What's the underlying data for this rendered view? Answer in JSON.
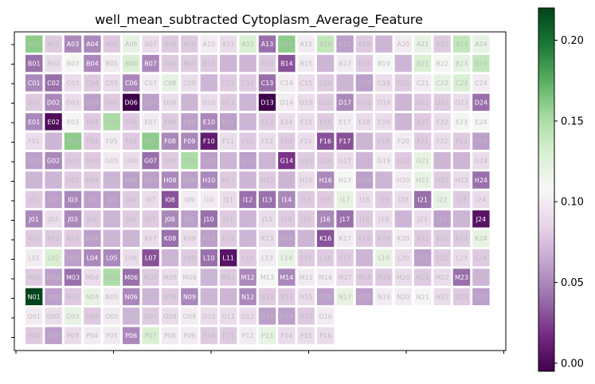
{
  "chart_data": {
    "type": "heatmap",
    "title": "well_mean_subtracted Cytoplasm_Average_Feature",
    "colormap": "PRGn",
    "vmin": -0.005,
    "vmax": 0.22,
    "colorbar_ticks": [
      0.0,
      0.05,
      0.1,
      0.15,
      0.2
    ],
    "colorbar_tick_labels": [
      "0.00",
      "0.05",
      "0.10",
      "0.15",
      "0.20"
    ],
    "x_ticks": [
      "",
      "",
      "",
      "",
      "",
      ""
    ],
    "y_ticks": [
      "",
      "",
      "",
      "",
      "",
      "",
      "",
      "",
      "",
      "",
      "",
      "",
      "",
      "",
      "",
      ""
    ],
    "rows": [
      "A",
      "B",
      "C",
      "D",
      "E",
      "F",
      "G",
      "H",
      "I",
      "J",
      "K",
      "L",
      "M",
      "N",
      "O",
      "P"
    ],
    "columns": [
      "01",
      "02",
      "03",
      "04",
      "05",
      "06",
      "07",
      "08",
      "09",
      "10",
      "11",
      "12",
      "13",
      "14",
      "15",
      "16",
      "17",
      "18",
      "19",
      "20",
      "21",
      "22",
      "23",
      "24"
    ],
    "values": [
      [
        0.16,
        0.08,
        0.05,
        0.05,
        0.08,
        0.12,
        0.09,
        0.08,
        0.08,
        0.1,
        0.09,
        0.13,
        0.04,
        0.16,
        0.1,
        0.14,
        0.06,
        0.08,
        0.07,
        0.1,
        0.12,
        0.08,
        0.14,
        0.12
      ],
      [
        0.04,
        0.09,
        0.11,
        0.05,
        0.1,
        0.13,
        0.05,
        0.08,
        0.08,
        0.08,
        0.07,
        0.07,
        0.08,
        0.03,
        0.1,
        0.07,
        0.1,
        0.08,
        0.11,
        0.07,
        0.13,
        0.11,
        0.12,
        0.14
      ],
      [
        0.05,
        0.04,
        0.09,
        0.08,
        0.09,
        0.05,
        0.1,
        0.12,
        0.09,
        0.07,
        0.08,
        0.08,
        0.04,
        0.1,
        0.09,
        0.08,
        0.07,
        0.06,
        0.09,
        0.08,
        0.1,
        0.12,
        0.13,
        0.1
      ],
      [
        0.08,
        0.05,
        0.09,
        0.06,
        0.08,
        -0.005,
        0.06,
        0.09,
        0.07,
        0.09,
        0.08,
        0.07,
        -0.005,
        0.1,
        0.09,
        0.08,
        0.05,
        0.08,
        0.09,
        0.07,
        0.08,
        0.08,
        0.09,
        0.04
      ],
      [
        0.05,
        0.002,
        0.11,
        0.08,
        0.15,
        0.08,
        0.1,
        0.08,
        0.06,
        0.05,
        0.06,
        0.07,
        0.08,
        0.09,
        0.09,
        0.08,
        0.1,
        0.09,
        0.09,
        0.07,
        0.08,
        0.09,
        0.11,
        0.11
      ],
      [
        0.09,
        0.07,
        0.16,
        0.08,
        0.1,
        0.08,
        0.16,
        0.05,
        0.05,
        0.01,
        0.09,
        0.08,
        0.09,
        0.08,
        0.09,
        0.03,
        0.03,
        0.07,
        0.08,
        0.1,
        0.08,
        0.09,
        0.08,
        0.06
      ],
      [
        0.06,
        0.05,
        0.08,
        0.08,
        0.1,
        0.09,
        0.04,
        0.08,
        0.15,
        0.06,
        0.07,
        0.06,
        0.07,
        0.02,
        0.08,
        0.08,
        0.09,
        0.07,
        0.1,
        0.08,
        0.12,
        0.07,
        0.07,
        0.09
      ],
      [
        0.07,
        0.07,
        0.08,
        0.08,
        0.07,
        0.06,
        0.06,
        0.05,
        0.06,
        0.05,
        0.08,
        0.07,
        0.08,
        0.07,
        0.09,
        0.05,
        0.11,
        0.06,
        0.07,
        0.1,
        0.12,
        0.08,
        0.09,
        0.04
      ],
      [
        0.08,
        0.06,
        0.05,
        0.06,
        0.06,
        0.08,
        0.09,
        0.03,
        0.1,
        0.1,
        0.09,
        0.04,
        0.04,
        0.05,
        0.08,
        0.08,
        0.12,
        0.09,
        0.08,
        0.09,
        0.04,
        0.12,
        0.08,
        0.09
      ],
      [
        0.05,
        0.09,
        0.05,
        0.08,
        0.07,
        0.08,
        0.08,
        0.05,
        0.06,
        0.04,
        0.08,
        0.07,
        0.09,
        0.08,
        0.08,
        0.05,
        0.04,
        0.08,
        0.09,
        0.07,
        0.09,
        0.06,
        0.07,
        0.005
      ],
      [
        0.08,
        0.08,
        0.08,
        0.06,
        0.07,
        0.07,
        0.09,
        0.04,
        0.09,
        0.06,
        0.08,
        0.07,
        0.09,
        0.06,
        0.07,
        0.03,
        0.1,
        0.08,
        0.08,
        0.1,
        0.08,
        0.08,
        0.08,
        0.12
      ],
      [
        0.1,
        0.13,
        0.06,
        0.05,
        0.05,
        0.09,
        0.03,
        0.07,
        0.08,
        0.04,
        0.005,
        0.08,
        0.1,
        0.12,
        0.08,
        0.08,
        0.08,
        0.07,
        0.12,
        0.09,
        0.06,
        0.08,
        0.09,
        0.08
      ],
      [
        0.08,
        0.06,
        0.04,
        0.09,
        0.15,
        0.04,
        0.08,
        0.09,
        0.1,
        0.07,
        0.08,
        0.05,
        0.11,
        0.05,
        0.1,
        0.1,
        0.09,
        0.08,
        0.08,
        0.09,
        0.08,
        0.09,
        0.04,
        0.07
      ],
      [
        0.22,
        0.06,
        0.08,
        0.12,
        0.1,
        0.05,
        0.07,
        0.08,
        0.05,
        0.07,
        0.07,
        0.05,
        0.08,
        0.08,
        0.09,
        0.06,
        0.12,
        0.06,
        0.1,
        0.1,
        0.11,
        0.09,
        0.08,
        0.06
      ],
      [
        0.1,
        0.09,
        0.12,
        0.08,
        0.1,
        0.07,
        0.08,
        0.09,
        0.1,
        0.09,
        0.09,
        0.09,
        0.06,
        0.06,
        0.08,
        0.1,
        null,
        null,
        null,
        null,
        null,
        null,
        null,
        null
      ],
      [
        0.08,
        0.06,
        0.09,
        0.1,
        0.1,
        0.05,
        0.13,
        0.1,
        0.1,
        0.08,
        0.08,
        0.1,
        0.12,
        0.09,
        0.09,
        0.09,
        null,
        null,
        null,
        null,
        null,
        null,
        null,
        null
      ]
    ]
  }
}
